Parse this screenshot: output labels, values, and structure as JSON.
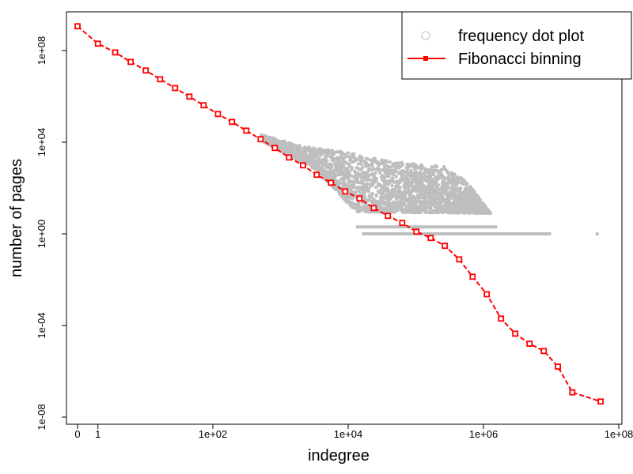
{
  "chart_data": {
    "type": "scatter",
    "xlabel": "indegree",
    "ylabel": "number of pages",
    "x_scale": "log (indegree + 1)",
    "y_scale": "log",
    "xlim": [
      1,
      100000000.0
    ],
    "ylim": [
      1e-08,
      1000000000.0
    ],
    "x_ticks": [
      {
        "value": 1,
        "label": "0"
      },
      {
        "value": 2,
        "label": "1"
      },
      {
        "value": 100,
        "label": "1e+02"
      },
      {
        "value": 10000,
        "label": "1e+04"
      },
      {
        "value": 1000000,
        "label": "1e+06"
      },
      {
        "value": 100000000,
        "label": "1e+08"
      }
    ],
    "y_ticks": [
      {
        "value": 100000000.0,
        "label": "1e+08"
      },
      {
        "value": 10000.0,
        "label": "1e+04"
      },
      {
        "value": 1,
        "label": "1e+00"
      },
      {
        "value": 0.0001,
        "label": "1e-04"
      },
      {
        "value": 1e-08,
        "label": "1e-08"
      }
    ],
    "legend": {
      "placement": "top-right",
      "entries": [
        "frequency dot plot",
        "Fibonacci binning"
      ]
    },
    "colors": {
      "frequency": "#bebebe",
      "fibonacci": "#ff0000"
    },
    "series": [
      {
        "name": "Fibonacci binning",
        "style": "dashed line with square markers",
        "points": [
          [
            1,
            1150000000.0
          ],
          [
            2,
            200000000.0
          ],
          [
            3.6,
            83000000.0
          ],
          [
            6.1,
            32000000.0
          ],
          [
            10.2,
            13500000.0
          ],
          [
            16.6,
            5600000.0
          ],
          [
            27.7,
            2300000.0
          ],
          [
            45,
            980000.0
          ],
          [
            73,
            410000.0
          ],
          [
            119,
            170000.0
          ],
          [
            192,
            77000.0
          ],
          [
            312,
            32000.0
          ],
          [
            507,
            13500.0
          ],
          [
            824,
            5600.0
          ],
          [
            1337,
            2150
          ],
          [
            2150,
            980
          ],
          [
            3430,
            377
          ],
          [
            5570,
            170
          ],
          [
            9050,
            71
          ],
          [
            14700,
            35
          ],
          [
            23900,
            13.4
          ],
          [
            38700,
            6.1
          ],
          [
            63000,
            3.0
          ],
          [
            102000,
            1.24
          ],
          [
            166000,
            0.66
          ],
          [
            269000,
            0.3
          ],
          [
            438000,
            0.077
          ],
          [
            692000,
            0.0134
          ],
          [
            1120000.0,
            0.0023
          ],
          [
            1820000.0,
            0.0002
          ],
          [
            2950000.0,
            4.4e-05
          ],
          [
            4800000.0,
            1.6e-05
          ],
          [
            7800000.0,
            7.7e-06
          ],
          [
            12600000.0,
            1.6e-06
          ],
          [
            20600000.0,
            1.2e-07
          ],
          [
            54000000.0,
            4.8e-08
          ]
        ]
      },
      {
        "name": "frequency dot plot",
        "style": "gray dots (dense cloud)",
        "cloud_upper": [
          [
            515,
            22000.0
          ],
          [
            2000,
            6800
          ],
          [
            5850,
            4600
          ],
          [
            13100,
            3000
          ],
          [
            50000,
            1370
          ],
          [
            250000,
            930
          ],
          [
            570000,
            190
          ],
          [
            1270000,
            8
          ]
        ],
        "cloud_lower": [
          [
            515,
            12000.0
          ],
          [
            3400,
            620
          ],
          [
            13100,
            9
          ],
          [
            1270000,
            8
          ]
        ],
        "band_y2": [
          13000,
          1600000
        ],
        "band_y1": [
          16000,
          10000000
        ],
        "outliers": [
          [
            48000000,
            1
          ]
        ]
      }
    ]
  }
}
